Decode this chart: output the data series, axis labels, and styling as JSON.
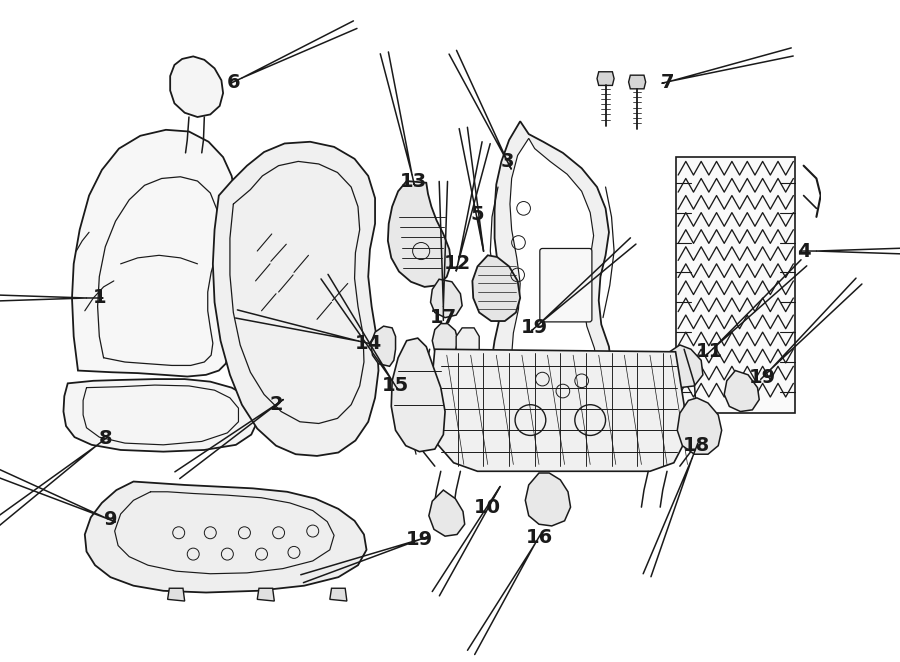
{
  "bg_color": "#ffffff",
  "line_color": "#1a1a1a",
  "fig_width": 9.0,
  "fig_height": 6.62,
  "dpi": 100,
  "label_fontsize": 14
}
